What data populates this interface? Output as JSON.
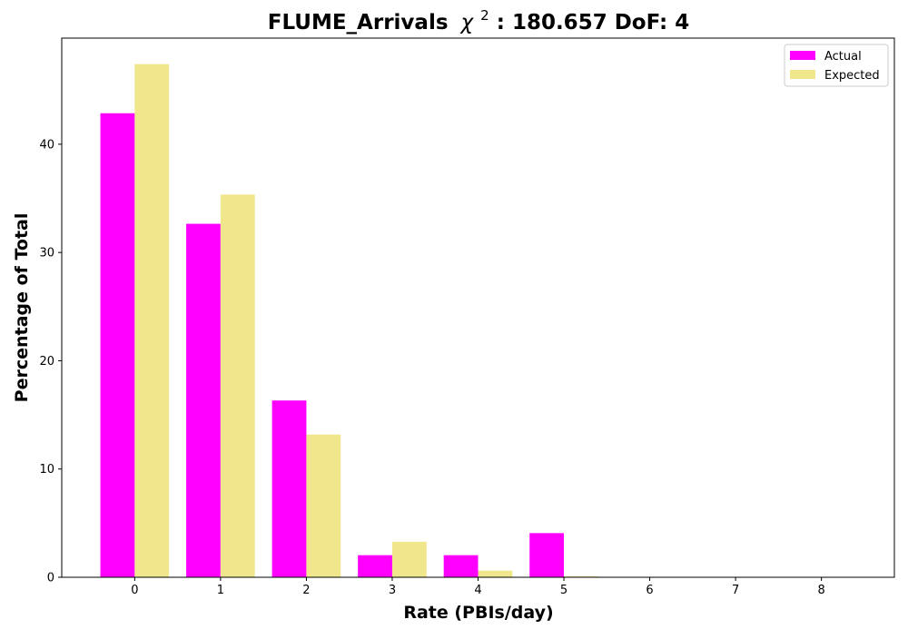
{
  "chart_data": {
    "type": "bar",
    "title": "FLUME_Arrivals",
    "title_chi_symbol": "χ",
    "title_chi_superscript": "2",
    "title_stats": ": 180.657 DoF: 4",
    "xlabel": "Rate (PBIs/day)",
    "ylabel": "Percentage of Total",
    "categories": [
      "0",
      "1",
      "2",
      "3",
      "4",
      "5",
      "6",
      "7",
      "8"
    ],
    "x": [
      0,
      1,
      2,
      3,
      4,
      5,
      6,
      7,
      8
    ],
    "xlim": [
      -0.85,
      8.85
    ],
    "ylim": [
      0,
      49.8
    ],
    "yticks": [
      0,
      10,
      20,
      30,
      40
    ],
    "grid": false,
    "legend_position": "top-right",
    "series": [
      {
        "name": "Actual",
        "color": "#ff00ff",
        "values": [
          42.86,
          32.65,
          16.33,
          2.04,
          2.04,
          4.08,
          0,
          0,
          0
        ]
      },
      {
        "name": "Expected",
        "color": "#f0e68c",
        "values": [
          47.4,
          35.35,
          13.18,
          3.28,
          0.61,
          0.09,
          0.01,
          0,
          0
        ]
      }
    ]
  }
}
